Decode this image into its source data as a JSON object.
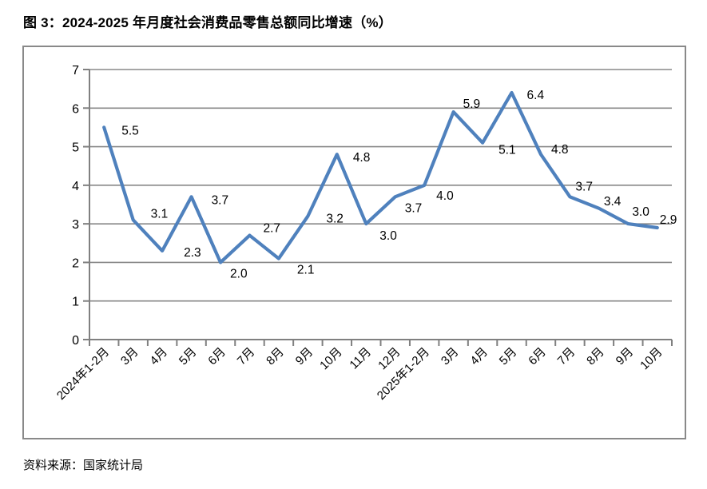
{
  "figure_title": "图 3：2024-2025 年月度社会消费品零售总额同比增速（%）",
  "source_note": "资料来源：国家统计局",
  "chart_data": {
    "type": "line",
    "title": "图 3：2024-2025 年月度社会消费品零售总额同比增速（%）",
    "categories": [
      "2024年1-2月",
      "3月",
      "4月",
      "5月",
      "6月",
      "7月",
      "8月",
      "9月",
      "10月",
      "11月",
      "12月",
      "2025年1-2月",
      "3月",
      "4月",
      "5月",
      "6月",
      "7月",
      "8月",
      "9月",
      "10月"
    ],
    "series": [
      {
        "name": "社会消费品零售总额同比增速",
        "values": [
          5.5,
          3.1,
          2.3,
          3.7,
          2.0,
          2.7,
          2.1,
          3.2,
          4.8,
          3.0,
          3.7,
          4.0,
          5.9,
          5.1,
          6.4,
          4.8,
          3.7,
          3.4,
          3.0,
          2.9
        ],
        "data_labels": [
          "5.5",
          "3.1",
          "2.3",
          "3.7",
          "2.0",
          "2.7",
          "2.1",
          "3.2",
          "4.8",
          "3.0",
          "3.7",
          "4.0",
          "5.9",
          "5.1",
          "6.4",
          "4.8",
          "3.7",
          "3.4",
          "3.0",
          "2.9"
        ]
      }
    ],
    "xlabel": "",
    "ylabel": "",
    "ylim": [
      0,
      7
    ],
    "y_ticks": [
      "0",
      "1",
      "2",
      "3",
      "4",
      "5",
      "6",
      "7"
    ],
    "grid": true,
    "legend_position": "none",
    "colors": {
      "line": "#4F81BD",
      "gridline": "#888888",
      "axis": "#808080",
      "chart_border": "#898989",
      "text": "#000000"
    }
  }
}
